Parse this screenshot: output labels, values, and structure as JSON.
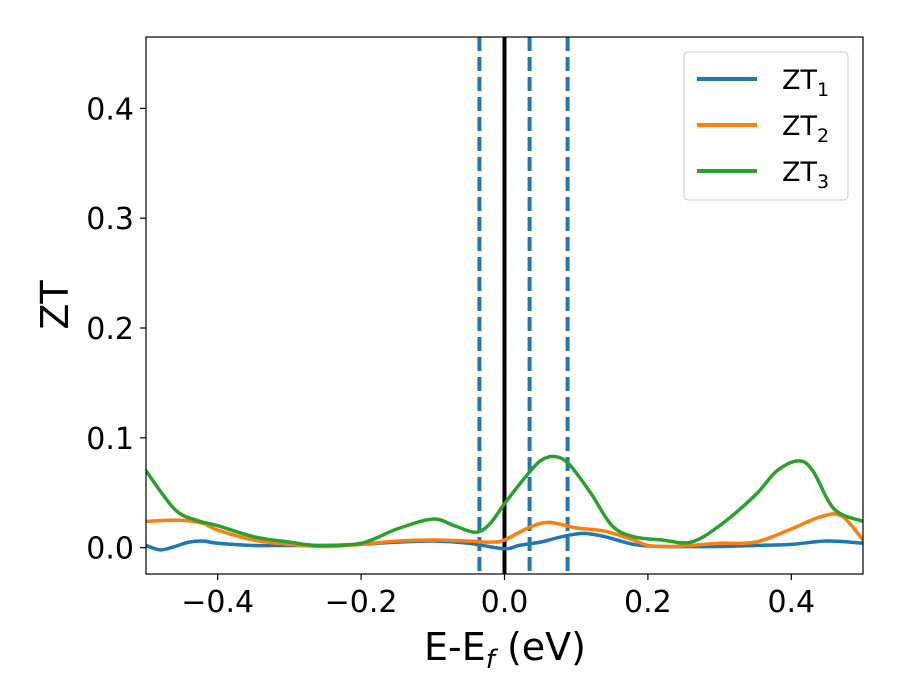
{
  "chart_data": {
    "type": "line",
    "xlabel": "E-E",
    "xlabel_sub": "f",
    "xlabel_unit": " (eV)",
    "ylabel": "ZT",
    "xlim": [
      -0.5,
      0.5
    ],
    "ylim": [
      -0.024,
      0.465
    ],
    "xticks": [
      -0.4,
      -0.2,
      0.0,
      0.2,
      0.4
    ],
    "xtick_labels": [
      "−0.4",
      "−0.2",
      "0.0",
      "0.2",
      "0.4"
    ],
    "yticks": [
      0.0,
      0.1,
      0.2,
      0.3,
      0.4
    ],
    "ytick_labels": [
      "0.0",
      "0.1",
      "0.2",
      "0.3",
      "0.4"
    ],
    "grid": false,
    "legend_position": "top-right",
    "vertical_lines": [
      {
        "x": 0.0,
        "style": "solid",
        "color": "#000000"
      },
      {
        "x": -0.035,
        "style": "dashed",
        "color": "#1f77b4"
      },
      {
        "x": 0.035,
        "style": "dashed",
        "color": "#1f77b4"
      },
      {
        "x": 0.088,
        "style": "dashed",
        "color": "#1f77b4"
      }
    ],
    "series": [
      {
        "name": "ZT",
        "name_sub": "1",
        "color": "#1f77b4",
        "x": [
          -0.5,
          -0.48,
          -0.46,
          -0.44,
          -0.42,
          -0.4,
          -0.35,
          -0.3,
          -0.25,
          -0.2,
          -0.15,
          -0.1,
          -0.05,
          0.0,
          0.02,
          0.05,
          0.08,
          0.11,
          0.14,
          0.18,
          0.22,
          0.26,
          0.3,
          0.35,
          0.4,
          0.45,
          0.5
        ],
        "y": [
          0.002,
          -0.002,
          0.001,
          0.005,
          0.006,
          0.004,
          0.002,
          0.002,
          0.002,
          0.003,
          0.005,
          0.006,
          0.004,
          -0.001,
          0.002,
          0.005,
          0.01,
          0.013,
          0.01,
          0.003,
          0.001,
          0.001,
          0.001,
          0.002,
          0.003,
          0.006,
          0.004
        ]
      },
      {
        "name": "ZT",
        "name_sub": "2",
        "color": "#ff7f0e",
        "x": [
          -0.5,
          -0.45,
          -0.42,
          -0.4,
          -0.35,
          -0.3,
          -0.25,
          -0.2,
          -0.15,
          -0.1,
          -0.05,
          -0.02,
          0.0,
          0.03,
          0.06,
          0.1,
          0.14,
          0.18,
          0.2,
          0.23,
          0.26,
          0.3,
          0.35,
          0.4,
          0.44,
          0.47,
          0.5
        ],
        "y": [
          0.024,
          0.025,
          0.022,
          0.016,
          0.007,
          0.003,
          0.001,
          0.003,
          0.006,
          0.007,
          0.006,
          0.005,
          0.007,
          0.017,
          0.023,
          0.018,
          0.015,
          0.007,
          0.002,
          0.001,
          0.002,
          0.004,
          0.005,
          0.017,
          0.028,
          0.029,
          0.007
        ]
      },
      {
        "name": "ZT",
        "name_sub": "3",
        "color": "#2ca02c",
        "x": [
          -0.5,
          -0.46,
          -0.43,
          -0.4,
          -0.35,
          -0.3,
          -0.26,
          -0.2,
          -0.15,
          -0.1,
          -0.07,
          -0.04,
          -0.02,
          0.0,
          0.03,
          0.05,
          0.07,
          0.09,
          0.12,
          0.15,
          0.18,
          0.22,
          0.26,
          0.3,
          0.35,
          0.38,
          0.41,
          0.43,
          0.46,
          0.5
        ],
        "y": [
          0.07,
          0.035,
          0.025,
          0.02,
          0.01,
          0.005,
          0.002,
          0.004,
          0.017,
          0.026,
          0.02,
          0.014,
          0.022,
          0.04,
          0.065,
          0.079,
          0.083,
          0.076,
          0.05,
          0.02,
          0.01,
          0.007,
          0.005,
          0.02,
          0.048,
          0.07,
          0.079,
          0.07,
          0.035,
          0.024
        ]
      }
    ]
  }
}
